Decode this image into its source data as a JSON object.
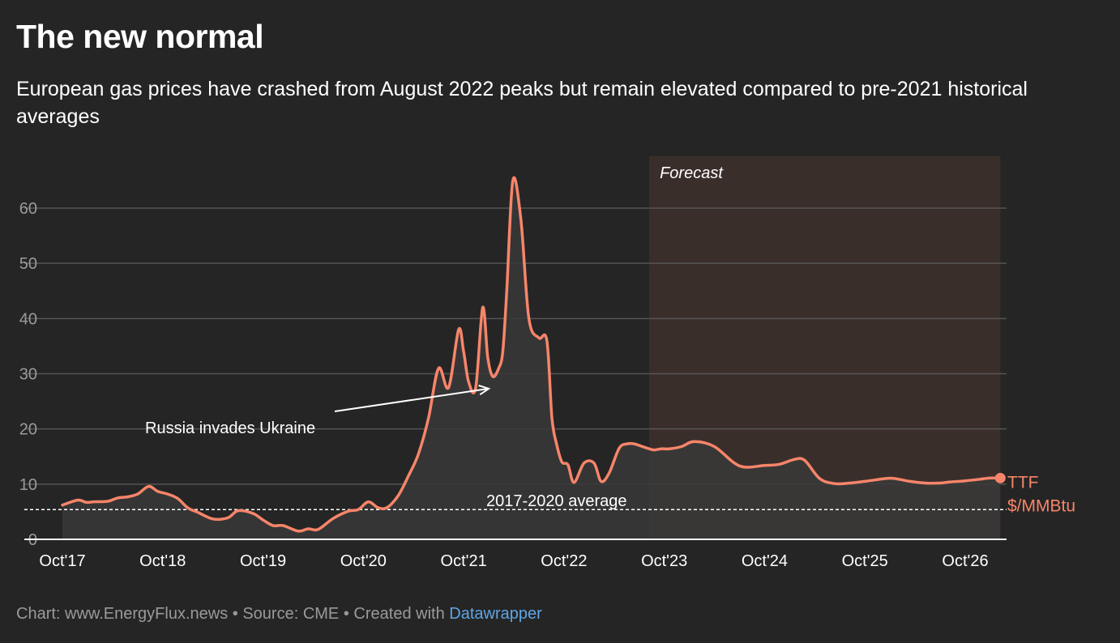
{
  "header": {
    "title": "The new normal",
    "subtitle": "European gas prices have crashed from August 2022 peaks but remain elevated compared to pre-2021 historical averages"
  },
  "footer": {
    "chart_label": "Chart: www.EnergyFlux.news",
    "separator": "•",
    "source_label": "Source: CME",
    "created_with": "Created with",
    "tool_link": "Datawrapper"
  },
  "colors": {
    "background": "#252525",
    "line": "#f7856a",
    "area_fill": "#383838",
    "forecast_fill": "#3a2e2b",
    "grid": "#555555",
    "axis_text": "#9a9a9a",
    "link": "#5fa5e6"
  },
  "chart_data": {
    "type": "area",
    "title": "The new normal",
    "xlabel": "",
    "ylabel": "",
    "units": "$/MMBtu",
    "ylim": [
      0,
      70
    ],
    "yticks": [
      0,
      10,
      20,
      30,
      40,
      50,
      60
    ],
    "xlim": [
      2017.75,
      2027.2
    ],
    "xticks": [
      {
        "label": "Oct'17",
        "value": 2017.75
      },
      {
        "label": "Oct'18",
        "value": 2018.75
      },
      {
        "label": "Oct'19",
        "value": 2019.75
      },
      {
        "label": "Oct'20",
        "value": 2020.75
      },
      {
        "label": "Oct'21",
        "value": 2021.75
      },
      {
        "label": "Oct'22",
        "value": 2022.75
      },
      {
        "label": "Oct'23",
        "value": 2023.75
      },
      {
        "label": "Oct'24",
        "value": 2024.75
      },
      {
        "label": "Oct'25",
        "value": 2025.75
      },
      {
        "label": "Oct'26",
        "value": 2026.75
      }
    ],
    "grid": true,
    "series": [
      {
        "name": "TTF",
        "label_line1": "TTF",
        "label_line2": "$/MMBtu",
        "x": [
          2017.75,
          2017.9,
          2017.99,
          2018.06,
          2018.2,
          2018.3,
          2018.4,
          2018.5,
          2018.61,
          2018.7,
          2018.8,
          2018.9,
          2019.0,
          2019.1,
          2019.25,
          2019.4,
          2019.5,
          2019.65,
          2019.75,
          2019.85,
          2019.95,
          2020.1,
          2020.2,
          2020.3,
          2020.45,
          2020.6,
          2020.7,
          2020.8,
          2020.9,
          2020.99,
          2021.1,
          2021.2,
          2021.3,
          2021.4,
          2021.5,
          2021.6,
          2021.7,
          2021.75,
          2021.8,
          2021.87,
          2021.94,
          2021.99,
          2022.04,
          2022.1,
          2022.14,
          2022.18,
          2022.24,
          2022.32,
          2022.4,
          2022.5,
          2022.58,
          2022.63,
          2022.68,
          2022.73,
          2022.79,
          2022.85,
          2022.95,
          2023.05,
          2023.12,
          2023.2,
          2023.3,
          2023.38,
          2023.45,
          2023.55,
          2023.6,
          2023.65,
          2023.72,
          2023.8,
          2023.92,
          2024.05,
          2024.25,
          2024.5,
          2024.75,
          2024.9,
          2025.05,
          2025.15,
          2025.3,
          2025.45,
          2025.6,
          2025.75,
          2025.95,
          2026.05,
          2026.2,
          2026.35,
          2026.5,
          2026.6,
          2026.75,
          2026.9,
          2027.0,
          2027.1
        ],
        "y": [
          6.2,
          7.1,
          6.7,
          6.8,
          6.9,
          7.5,
          7.7,
          8.2,
          9.6,
          8.7,
          8.2,
          7.4,
          5.7,
          4.9,
          3.7,
          3.9,
          5.2,
          4.7,
          3.5,
          2.5,
          2.5,
          1.5,
          1.9,
          1.8,
          3.8,
          5.1,
          5.4,
          6.8,
          5.7,
          5.8,
          8.0,
          11.5,
          15.5,
          22.0,
          31.0,
          27.5,
          38.0,
          34.0,
          28.5,
          27.5,
          42.0,
          33.0,
          29.5,
          31.0,
          34.0,
          45.0,
          65.0,
          58.0,
          40.0,
          36.5,
          36.0,
          22.0,
          17.0,
          14.0,
          13.5,
          10.3,
          13.8,
          13.8,
          10.5,
          12.0,
          16.5,
          17.3,
          17.3,
          16.7,
          16.4,
          16.2,
          16.4,
          16.4,
          16.8,
          17.7,
          16.8,
          13.3,
          13.4,
          13.6,
          14.5,
          14.3,
          11.0,
          10.1,
          10.2,
          10.5,
          11.0,
          11.0,
          10.5,
          10.2,
          10.2,
          10.4,
          10.6,
          10.9,
          11.1,
          11.1
        ]
      }
    ],
    "reference_line": {
      "label": "2017-2020 average",
      "value": 5.4
    },
    "forecast_region": {
      "label": "Forecast",
      "x_start": 2023.6,
      "x_end": 2027.1
    },
    "annotations": [
      {
        "text": "Russia invades Ukraine",
        "x": 2021.25,
        "y": 20,
        "arrow_to_x": 2022.0,
        "arrow_to_y": 27.3
      }
    ]
  }
}
